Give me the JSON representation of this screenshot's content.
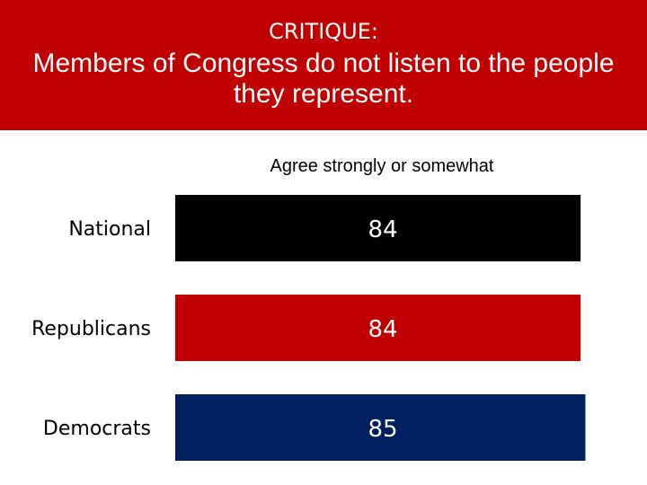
{
  "header": {
    "kicker": "CRITIQUE:",
    "headline": "Members of Congress do not listen to the people they represent."
  },
  "colors": {
    "banner": "#c00000",
    "bars": [
      "#000000",
      "#c00000",
      "#002060"
    ]
  },
  "chart_data": {
    "type": "bar",
    "orientation": "horizontal",
    "subtitle": "Agree strongly or somewhat",
    "categories": [
      "National",
      "Republicans",
      "Democrats"
    ],
    "values": [
      84,
      84,
      85
    ],
    "value_labels": [
      "84",
      "84",
      "85"
    ],
    "grid": false,
    "legend": "none"
  }
}
